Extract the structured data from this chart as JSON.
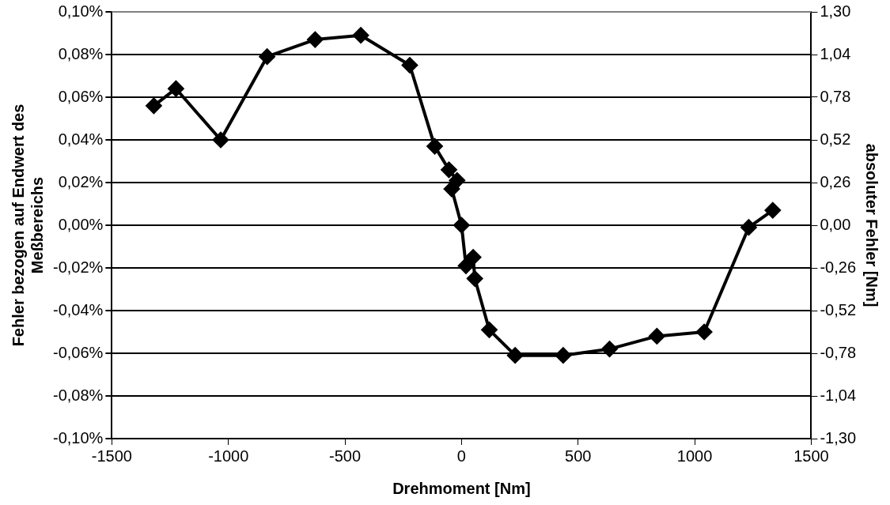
{
  "chart_data": {
    "type": "line",
    "xlabel": "Drehmoment [Nm]",
    "ylabel": "Fehler bezogen auf Endwert des Meßbereichs",
    "y2label": "absoluter Fehler [Nm]",
    "x": [
      -1320,
      -1225,
      -1033,
      -834,
      -628,
      -432,
      -222,
      -115,
      -54,
      -19,
      -42,
      0,
      19,
      50,
      57,
      119,
      230,
      436,
      635,
      838,
      1041,
      1232,
      1335
    ],
    "series": [
      {
        "color": "#000000",
        "values": [
          0.056,
          0.064,
          0.04,
          0.079,
          0.087,
          0.089,
          0.075,
          0.037,
          0.026,
          0.021,
          0.017,
          0.0,
          -0.019,
          -0.015,
          -0.025,
          -0.049,
          -0.061,
          -0.061,
          -0.058,
          -0.052,
          -0.05,
          -0.001,
          0.007
        ]
      }
    ],
    "xlim": [
      -1500,
      1500
    ],
    "xticks": [
      -1500,
      -1000,
      -500,
      0,
      500,
      1000,
      1500
    ],
    "ylim": [
      -0.1,
      0.1
    ],
    "yticks": [
      {
        "value": -0.1,
        "label": "-0,10%"
      },
      {
        "value": -0.08,
        "label": "-0,08%"
      },
      {
        "value": -0.06,
        "label": "-0,06%"
      },
      {
        "value": -0.04,
        "label": "-0,04%"
      },
      {
        "value": -0.02,
        "label": "-0,02%"
      },
      {
        "value": 0,
        "label": "0,00%"
      },
      {
        "value": 0.02,
        "label": "0,02%"
      },
      {
        "value": 0.04,
        "label": "0,04%"
      },
      {
        "value": 0.06,
        "label": "0,06%"
      },
      {
        "value": 0.08,
        "label": "0,08%"
      },
      {
        "value": 0.1,
        "label": "0,10%"
      }
    ],
    "y2lim": [
      -1.3,
      1.3
    ],
    "y2ticks": [
      {
        "value": -1.3,
        "label": "-1,30"
      },
      {
        "value": -1.04,
        "label": "-1,04"
      },
      {
        "value": -0.78,
        "label": "-0,78"
      },
      {
        "value": -0.52,
        "label": "-0,52"
      },
      {
        "value": -0.26,
        "label": "-0,26"
      },
      {
        "value": 0,
        "label": "0,00"
      },
      {
        "value": 0.26,
        "label": "0,26"
      },
      {
        "value": 0.52,
        "label": "0,52"
      },
      {
        "value": 0.78,
        "label": "0,78"
      },
      {
        "value": 1.04,
        "label": "1,04"
      },
      {
        "value": 1.3,
        "label": "1,30"
      }
    ],
    "grid": "y",
    "legend": false,
    "marker": "diamond",
    "line_style": "solid"
  }
}
